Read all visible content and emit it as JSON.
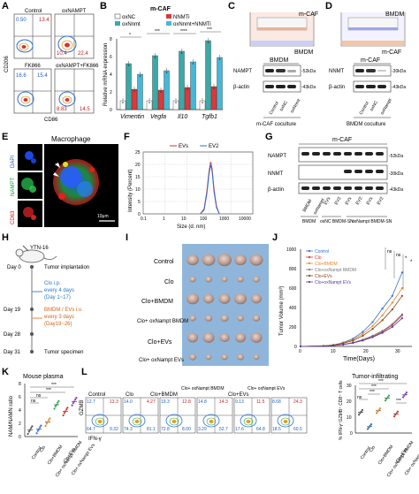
{
  "figure": {
    "panel_letters": [
      "A",
      "B",
      "C",
      "D",
      "E",
      "F",
      "G",
      "H",
      "I",
      "J",
      "K",
      "L"
    ],
    "A": {
      "titles": [
        "Control",
        "oxNAMPT",
        "FK866",
        "oxNAMPT+FK866"
      ],
      "quadrant_values": [
        [
          "0.50",
          "13.4"
        ],
        [
          "10.4",
          "22.4"
        ],
        [
          "16.6",
          "15.4"
        ],
        [
          "8.83",
          "14.5"
        ]
      ],
      "xlabel": "CD86",
      "ylabel": "CD206"
    },
    "B": {
      "title": "m-CAF",
      "legend": [
        "oxNC",
        "oxNnmt",
        "NNMTi",
        "oxNnmt+NNMTi"
      ],
      "ylabel": "Relative mRNA expression",
      "yticks": [
        "0",
        "2",
        "4",
        "6",
        "8"
      ],
      "genes": [
        "Vimentin",
        "Vegfa",
        "Il10",
        "Tgfb1"
      ],
      "sig": [
        "*",
        "**",
        "***",
        "****",
        "ns"
      ]
    },
    "C": {
      "top_label": "m-CAF",
      "lower_label": "BMDM",
      "blot_title": "BMDM",
      "rows": [
        "NAMPT",
        "β-actin"
      ],
      "kda": [
        "-52kDa",
        "-43kDa"
      ],
      "lanes": [
        "Control",
        "oxNC",
        "oxNnmt"
      ],
      "caption": "m-CAF coculture"
    },
    "D": {
      "top_label": "BMDM",
      "lower_label": "m-CAF",
      "blot_title": "m-CAF",
      "rows": [
        "NNMT",
        "β-actin"
      ],
      "kda": [
        "-30kDa",
        "-43kDa"
      ],
      "lanes": [
        "Control",
        "oxNC",
        "oxNampt"
      ],
      "caption": "BMDM coculture"
    },
    "E": {
      "title": "Macrophage",
      "channels": [
        "DAPI",
        "NAMPT",
        "CD63"
      ],
      "scale": "10μm"
    },
    "F": {
      "legend": [
        "EVs",
        "EV2"
      ],
      "ylabel": "Intensity (Percent)",
      "xlabel": "Size (d. nm)",
      "yticks": [
        "0",
        "5",
        "10",
        "15",
        "20",
        "25"
      ],
      "xticks": [
        "0.1",
        "1",
        "10",
        "100",
        "1000",
        "10000"
      ]
    },
    "G": {
      "title": "m-CAF",
      "rows": [
        "NAMPT",
        "NNMT",
        "β-actin"
      ],
      "kda": [
        "-52kDa",
        "-30kDa",
        "-43kDa"
      ],
      "lanes": [
        "BMDM",
        "oxNampt",
        "EVs",
        "EV2",
        "EVs",
        "EV2",
        "EVs",
        "EV2"
      ],
      "groups": [
        "BMDM",
        "oxNC BMDM-SN",
        "oxNampt BMDM-SN"
      ]
    },
    "H": {
      "drug": "YTN-16",
      "events": [
        {
          "day": "Day 0",
          "text": "Tumor implantation"
        },
        {
          "day": "",
          "text": "Clo i.p."
        },
        {
          "day": "",
          "text": "every 4 days"
        },
        {
          "day": "",
          "text": "(Day 1~17)"
        },
        {
          "day": "Day 19",
          "text": "BMDM / EVs i.v."
        },
        {
          "day": "",
          "text": "every 3 days"
        },
        {
          "day": "Day 28",
          "text": "(Day19~26)"
        },
        {
          "day": "Day 31",
          "text": "Tumor specimen"
        }
      ]
    },
    "I": {
      "groups": [
        "Control",
        "Clo",
        "Clo+BMDM",
        "Clo+ oxNampt BMDM",
        "Clo+EVs",
        "Clo+ oxNampt EVs"
      ]
    },
    "J": {
      "ylabel": "Tumor Volume (mm³)",
      "xlabel": "Time(Days)",
      "yticks": [
        "0",
        "200",
        "400",
        "600",
        "800",
        "1000"
      ],
      "xticks": [
        "0",
        "10",
        "20",
        "30"
      ],
      "sig": [
        "ns",
        "ns",
        "*",
        "*"
      ]
    },
    "K": {
      "title": "Mouse plasma",
      "ylabel": "NAM/NAMN ratio",
      "yticks": [
        "0",
        "2",
        "4",
        "6",
        "8"
      ],
      "sig": [
        "***",
        "***",
        "ns",
        "ns"
      ]
    },
    "L": {
      "titles": [
        "Control",
        "Clo",
        "Clo+BMDM",
        "Clo+ oxNampt BMDM",
        "Clo+EVs",
        "Clo+ oxNampt EVs"
      ],
      "top_values": [
        [
          "12.7",
          "13.3"
        ],
        [
          "14.0",
          "4.27"
        ],
        [
          "19.3",
          "12.8"
        ],
        [
          "14.8",
          "14.3"
        ],
        [
          "9.13",
          "11.5"
        ],
        [
          "8.68",
          "24.3"
        ]
      ],
      "bottom_values": [
        [
          "64.7",
          "9.32"
        ],
        [
          "74.3",
          "81.1"
        ],
        [
          "72.8",
          "8.00"
        ],
        [
          "3.29",
          "52.7"
        ],
        [
          "17.6",
          "64.8"
        ],
        [
          "18.5",
          "60.5"
        ]
      ],
      "xlabel": "IFN-γ",
      "ylabel": "GZMB",
      "bar_title": "Tumor-infiltrating",
      "bar_ylabel": "% IFN-γ⁺GZMB⁺ CD8⁺ T cells",
      "bar_yticks": [
        "0",
        "10",
        "20",
        "30"
      ],
      "sig": [
        "***",
        "***",
        "***",
        "ns",
        "***"
      ]
    }
  },
  "chart_data": [
    {
      "type": "bar",
      "title": "m-CAF",
      "categories": [
        "Vimentin",
        "Vegfa",
        "Il10",
        "Tgfb1"
      ],
      "series": [
        {
          "name": "oxNC",
          "values": [
            1.0,
            1.0,
            1.0,
            1.0
          ]
        },
        {
          "name": "oxNnmt",
          "values": [
            5.2,
            6.1,
            6.6,
            7.8
          ]
        },
        {
          "name": "NNMTi",
          "values": [
            2.3,
            2.2,
            2.5,
            2.6
          ]
        },
        {
          "name": "oxNnmt+NNMTi",
          "values": [
            4.0,
            4.4,
            5.4,
            5.9
          ]
        }
      ],
      "ylabel": "Relative mRNA expression",
      "ylim": [
        0,
        8
      ]
    },
    {
      "type": "line",
      "xlabel": "Size (d. nm)",
      "ylabel": "Intensity (Percent)",
      "xscale": "log",
      "x": [
        40,
        60,
        80,
        100,
        120,
        140,
        170,
        220,
        300
      ],
      "series": [
        {
          "name": "EVs",
          "values": [
            0,
            2,
            9,
            17,
            21,
            18,
            10,
            3,
            0
          ]
        },
        {
          "name": "EV2",
          "values": [
            0,
            1.5,
            8,
            16,
            20,
            17,
            9,
            2.5,
            0
          ]
        }
      ],
      "ylim": [
        0,
        25
      ]
    },
    {
      "type": "line",
      "xlabel": "Time(Days)",
      "ylabel": "Tumor Volume (mm³)",
      "x": [
        0,
        7,
        10,
        13,
        16,
        19,
        22,
        25,
        28,
        31
      ],
      "series": [
        {
          "name": "Control",
          "values": [
            0,
            5,
            15,
            40,
            80,
            150,
            250,
            390,
            520,
            760
          ]
        },
        {
          "name": "Clo",
          "values": [
            0,
            4,
            10,
            20,
            40,
            65,
            100,
            150,
            220,
            320
          ]
        },
        {
          "name": "Clo+BMDM",
          "values": [
            0,
            5,
            15,
            35,
            70,
            130,
            210,
            320,
            450,
            600
          ]
        },
        {
          "name": "Clo+oxNampt BMDM",
          "values": [
            0,
            4,
            10,
            20,
            40,
            70,
            110,
            160,
            230,
            330
          ]
        },
        {
          "name": "Clo+EVs",
          "values": [
            0,
            5,
            14,
            32,
            60,
            110,
            180,
            270,
            380,
            520
          ]
        },
        {
          "name": "Clo+oxNampt EVs",
          "values": [
            0,
            4,
            9,
            18,
            35,
            60,
            95,
            140,
            200,
            290
          ]
        }
      ],
      "ylim": [
        0,
        1000
      ]
    },
    {
      "type": "scatter",
      "title": "Mouse plasma",
      "ylabel": "NAM/NAMN ratio",
      "categories": [
        "Control",
        "Clo",
        "Clo+BMDM",
        "Clo+oxNampt BMDM",
        "Clo+EVs",
        "Clo+oxNampt EVs"
      ],
      "values": [
        1.0,
        1.1,
        2.2,
        4.8,
        3.8,
        5.3
      ],
      "ylim": [
        0,
        8
      ]
    },
    {
      "type": "scatter",
      "title": "Tumor-infiltrating",
      "ylabel": "% IFN-γ⁺GZMB⁺ CD8⁺ T cells",
      "categories": [
        "Control",
        "Clo",
        "Clo+BMDM",
        "Clo+oxNampt BMDM",
        "Clo+EVs",
        "Clo+oxNampt EVs"
      ],
      "values": [
        13,
        4,
        14,
        22,
        12,
        24
      ],
      "ylim": [
        0,
        30
      ]
    }
  ]
}
